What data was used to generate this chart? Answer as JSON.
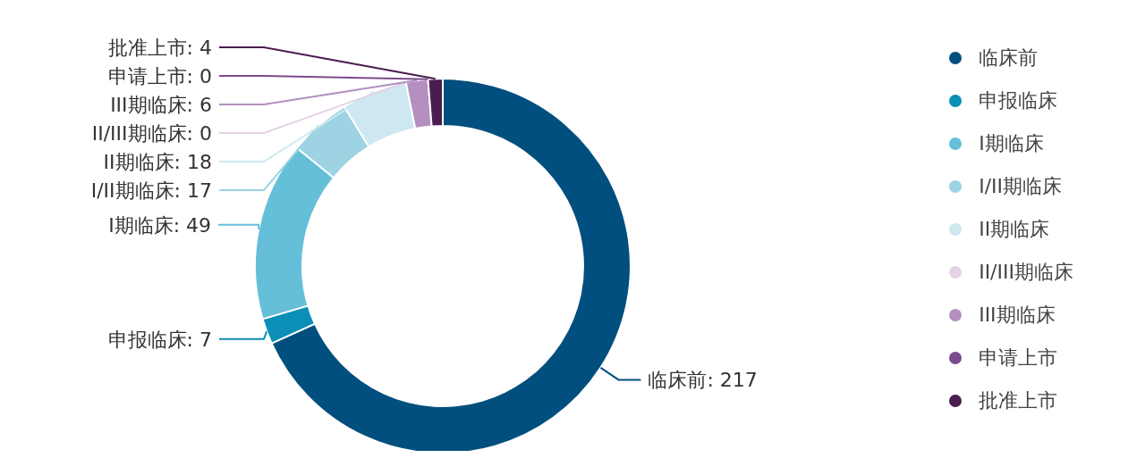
{
  "chart_data": {
    "type": "donut",
    "categories": [
      "临床前",
      "申报临床",
      "I期临床",
      "I/II期临床",
      "II期临床",
      "II/III期临床",
      "III期临床",
      "申请上市",
      "批准上市"
    ],
    "values": [
      217,
      7,
      49,
      17,
      18,
      0,
      6,
      0,
      4
    ],
    "value_labels": [
      "临床前: 217",
      "申报临床: 7",
      "I期临床: 49",
      "I/II期临床: 17",
      "II期临床: 18",
      "II/III期临床: 0",
      "III期临床: 6",
      "申请上市: 0",
      "批准上市: 4"
    ],
    "colors": [
      "#004f7e",
      "#0b8fb6",
      "#66bfd8",
      "#9dd3e3",
      "#cde8f0",
      "#e5d2e7",
      "#b48fbf",
      "#7b4a8c",
      "#4b1c4e"
    ],
    "legend": "right"
  }
}
